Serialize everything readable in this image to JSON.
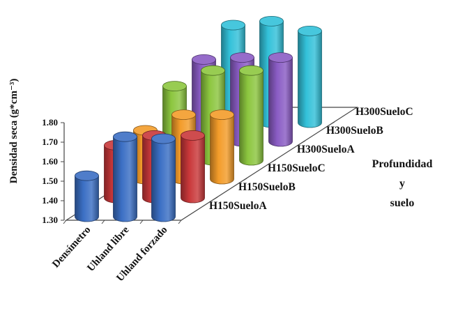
{
  "chart_data": {
    "type": "bar",
    "subtype": "3d-cylinder",
    "title": "",
    "ylabel": "Densidad seca  (g*cm⁻³)",
    "xlabel": "",
    "ylim": [
      1.3,
      1.8
    ],
    "yticks": [
      "1.30",
      "1.40",
      "1.50",
      "1.60",
      "1.70",
      "1.80"
    ],
    "categories": [
      "Densímetro",
      "Uhland libre",
      "Uhland forzado"
    ],
    "depth_axis_title": [
      "Profundidad",
      "y",
      "suelo"
    ],
    "series": [
      {
        "name": "H150SueloA",
        "color": "#3b6fc4",
        "values": [
          1.51,
          1.71,
          1.7
        ]
      },
      {
        "name": "H150SueloB",
        "color": "#c9383a",
        "values": [
          1.57,
          1.62,
          1.62
        ]
      },
      {
        "name": "H150SueloC",
        "color": "#f39c2a",
        "values": [
          1.55,
          1.63,
          1.63
        ]
      },
      {
        "name": "H300SueloA",
        "color": "#8cc63f",
        "values": [
          1.68,
          1.76,
          1.76
        ]
      },
      {
        "name": "H300SueloB",
        "color": "#8a5cc4",
        "values": [
          1.72,
          1.73,
          1.73
        ]
      },
      {
        "name": "H300SueloC",
        "color": "#33c1d9",
        "values": [
          1.8,
          1.82,
          1.77
        ]
      }
    ],
    "grid": false,
    "legend": "none"
  }
}
